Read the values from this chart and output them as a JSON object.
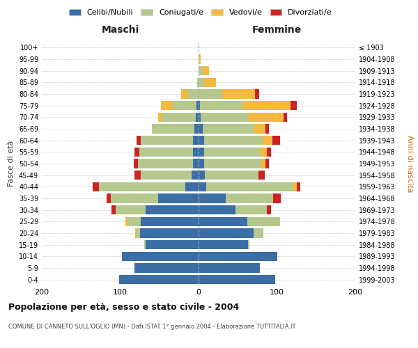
{
  "age_groups": [
    "0-4",
    "5-9",
    "10-14",
    "15-19",
    "20-24",
    "25-29",
    "30-34",
    "35-39",
    "40-44",
    "45-49",
    "50-54",
    "55-59",
    "60-64",
    "65-69",
    "70-74",
    "75-79",
    "80-84",
    "85-89",
    "90-94",
    "95-99",
    "100+"
  ],
  "birth_years": [
    "1999-2003",
    "1994-1998",
    "1989-1993",
    "1984-1988",
    "1979-1983",
    "1974-1978",
    "1969-1973",
    "1964-1968",
    "1959-1963",
    "1954-1958",
    "1949-1953",
    "1944-1948",
    "1939-1943",
    "1934-1938",
    "1929-1933",
    "1924-1928",
    "1919-1923",
    "1914-1918",
    "1909-1913",
    "1904-1908",
    "≤ 1903"
  ],
  "colors": {
    "celibi": "#3a6ea5",
    "coniugati": "#b5c98e",
    "vedovi": "#f5b942",
    "divorziati": "#cc2222"
  },
  "maschi": {
    "celibi": [
      101,
      82,
      98,
      68,
      75,
      74,
      68,
      52,
      17,
      9,
      7,
      7,
      7,
      5,
      4,
      3,
      0,
      0,
      0,
      0,
      0
    ],
    "coniugati": [
      0,
      0,
      0,
      1,
      5,
      17,
      38,
      60,
      110,
      65,
      70,
      69,
      67,
      55,
      43,
      30,
      14,
      2,
      0,
      0,
      0
    ],
    "vedovi": [
      0,
      0,
      0,
      0,
      1,
      2,
      0,
      0,
      0,
      0,
      0,
      0,
      0,
      0,
      5,
      15,
      8,
      0,
      0,
      0,
      0
    ],
    "divorziati": [
      0,
      0,
      0,
      0,
      0,
      0,
      5,
      5,
      8,
      8,
      6,
      6,
      5,
      0,
      0,
      0,
      0,
      0,
      0,
      0,
      0
    ]
  },
  "femmine": {
    "celibi": [
      98,
      78,
      100,
      63,
      70,
      62,
      47,
      35,
      10,
      8,
      7,
      7,
      7,
      5,
      3,
      2,
      0,
      0,
      0,
      0,
      0
    ],
    "coniugati": [
      0,
      0,
      0,
      2,
      13,
      42,
      40,
      60,
      110,
      68,
      72,
      72,
      75,
      65,
      60,
      55,
      30,
      7,
      5,
      0,
      0
    ],
    "vedovi": [
      0,
      0,
      0,
      0,
      0,
      0,
      0,
      0,
      5,
      0,
      6,
      8,
      12,
      15,
      45,
      60,
      42,
      15,
      8,
      3,
      0
    ],
    "divorziati": [
      0,
      0,
      0,
      0,
      0,
      0,
      5,
      10,
      5,
      8,
      5,
      5,
      10,
      5,
      5,
      8,
      5,
      0,
      0,
      0,
      0
    ]
  },
  "xlim": 200,
  "title": "Popolazione per età, sesso e stato civile - 2004",
  "subtitle": "COMUNE DI CANNETO SULL'OGLIO (MN) - Dati ISTAT 1° gennaio 2004 - Elaborazione TUTTITALIA.IT",
  "ylabel_left": "Fasce di età",
  "ylabel_right": "Anni di nascita",
  "xlabel_maschi": "Maschi",
  "xlabel_femmine": "Femmine",
  "legend_labels": [
    "Celibi/Nubili",
    "Coniugati/e",
    "Vedovi/e",
    "Divorziati/e"
  ],
  "bg_color": "#ffffff",
  "grid_color": "#cccccc"
}
